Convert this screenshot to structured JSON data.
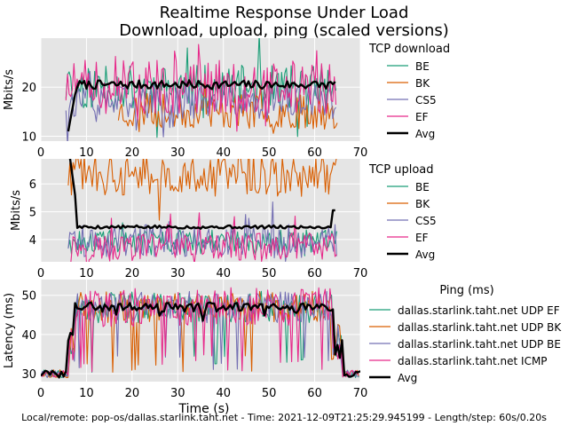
{
  "figure": {
    "title_line1": "Realtime Response Under Load",
    "title_line2": "Download, upload, ping (scaled versions)",
    "footer": "Local/remote: pop-os/dallas.starlink.taht.net - Time: 2021-12-09T21:25:29.945199 - Length/step: 60s/0.20s"
  },
  "colors": {
    "panel_bg": "#e5e5e5",
    "grid": "#ffffff",
    "BE": "#1b9e77",
    "BK": "#d95f02",
    "CS5": "#7570b3",
    "EF": "#e7298a",
    "Avg": "#000000"
  },
  "chart_data": [
    {
      "type": "line",
      "id": "download",
      "title": "",
      "xlabel": "",
      "ylabel": "Mbits/s",
      "xlim": [
        0,
        70
      ],
      "ylim": [
        9,
        30
      ],
      "xticks": [
        0,
        10,
        20,
        30,
        40,
        50,
        60,
        70
      ],
      "yticks": [
        10,
        20
      ],
      "legend_title": "TCP download",
      "legend_placement": "right",
      "series": [
        {
          "name": "BE",
          "start": 5.5,
          "end": 65,
          "base": 20,
          "amp": 4.5,
          "seed": 11
        },
        {
          "name": "BK",
          "start": 17,
          "end": 65,
          "base": 15,
          "amp": 3.5,
          "seed": 23
        },
        {
          "name": "CS5",
          "start": 5.5,
          "end": 65,
          "base": 17,
          "amp": 3.5,
          "seed": 37
        },
        {
          "name": "EF",
          "start": 5.5,
          "end": 65,
          "base": 20,
          "amp": 5.5,
          "seed": 51
        },
        {
          "name": "Avg",
          "start": 6,
          "end": 64.5,
          "base": 20.5,
          "amp": 0.9,
          "seed": 7
        }
      ]
    },
    {
      "type": "line",
      "id": "upload",
      "title": "",
      "xlabel": "",
      "ylabel": "Mbits/s",
      "xlim": [
        0,
        70
      ],
      "ylim": [
        3.2,
        6.9
      ],
      "xticks": [
        0,
        10,
        20,
        30,
        40,
        50,
        60,
        70
      ],
      "yticks": [
        4,
        5,
        6
      ],
      "legend_title": "TCP upload",
      "legend_placement": "right",
      "series": [
        {
          "name": "BE",
          "start": 6,
          "end": 65,
          "base": 3.9,
          "amp": 0.45,
          "seed": 61
        },
        {
          "name": "BK",
          "start": 6,
          "end": 65,
          "base": 6.3,
          "amp": 0.75,
          "seed": 73
        },
        {
          "name": "CS5",
          "start": 6,
          "end": 65,
          "base": 3.95,
          "amp": 0.6,
          "seed": 89
        },
        {
          "name": "EF",
          "start": 6,
          "end": 65,
          "base": 3.75,
          "amp": 0.5,
          "seed": 97
        },
        {
          "name": "Avg",
          "start": 6,
          "end": 64.5,
          "base": 4.45,
          "amp": 0.06,
          "seed": 5
        }
      ]
    },
    {
      "type": "line",
      "id": "ping",
      "title": "",
      "xlabel": "Time (s)",
      "ylabel": "Latency (ms)",
      "xlim": [
        0,
        70
      ],
      "ylim": [
        28,
        54
      ],
      "xticks": [
        0,
        10,
        20,
        30,
        40,
        50,
        60,
        70
      ],
      "yticks": [
        30,
        40,
        50
      ],
      "legend_title": "Ping (ms)",
      "legend_placement": "right",
      "series": [
        {
          "name": "dallas.starlink.taht.net UDP EF",
          "key": "BE",
          "start": 0,
          "end": 70,
          "base": 47,
          "amp": 4,
          "seed": 101
        },
        {
          "name": "dallas.starlink.taht.net UDP BK",
          "key": "BK",
          "start": 0,
          "end": 70,
          "base": 47,
          "amp": 4,
          "seed": 113
        },
        {
          "name": "dallas.starlink.taht.net UDP BE",
          "key": "CS5",
          "start": 0,
          "end": 70,
          "base": 47,
          "amp": 4,
          "seed": 127
        },
        {
          "name": "dallas.starlink.taht.net ICMP",
          "key": "EF",
          "start": 0,
          "end": 70,
          "base": 47,
          "amp": 5,
          "seed": 131
        },
        {
          "name": "Avg",
          "key": "Avg",
          "start": 0,
          "end": 70,
          "base": 47,
          "amp": 1.2,
          "seed": 3
        }
      ]
    }
  ]
}
